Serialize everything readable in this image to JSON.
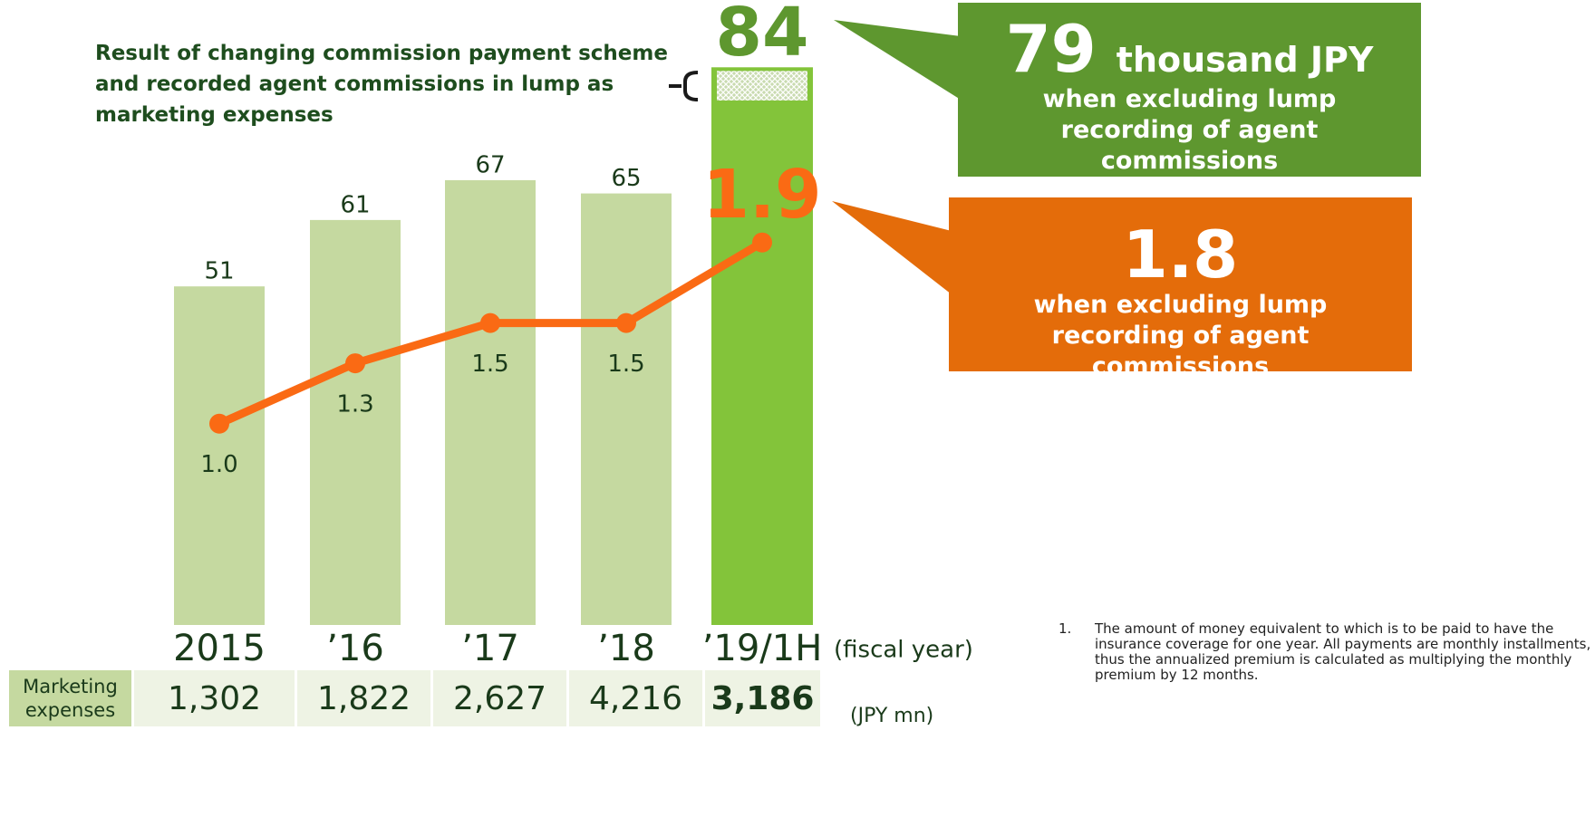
{
  "chart_data": {
    "type": "combo",
    "annotation": "Result of changing commission payment scheme and recorded agent commissions in lump as marketing expenses",
    "categories": [
      "2015",
      "’16",
      "’17",
      "’18",
      "’19/1H"
    ],
    "x_label": "(fiscal year)",
    "ylim": [
      0,
      94
    ],
    "y2lim": [
      0,
      3.1
    ],
    "series": [
      {
        "type": "bar",
        "color": "#c5d9a0",
        "highlight_color": "#83c43a",
        "label_color": "#1a3a1a",
        "values": [
          51,
          61,
          67,
          65,
          84
        ]
      },
      {
        "type": "line",
        "color": "#fa6a14",
        "axis": "y2",
        "values": [
          1.0,
          1.3,
          1.5,
          1.5,
          1.9
        ],
        "value_labels": [
          "1.0",
          "1.3",
          "1.5",
          "1.5",
          "1.9"
        ]
      }
    ],
    "callouts": [
      {
        "value": 79,
        "unit": "thousand JPY",
        "text": "when excluding lump recording of agent commissions",
        "color": "#5e972f"
      },
      {
        "value": 1.8,
        "text": "when excluding lump recording of agent commissions",
        "color": "#e46c0a"
      }
    ],
    "table": {
      "row_label": "Marketing expenses",
      "values": [
        "1,302",
        "1,822",
        "2,627",
        "4,216",
        "3,186"
      ],
      "unit": "(JPY mn)"
    },
    "footnote": {
      "number": "1.",
      "text": "The amount of money equivalent to which is to be paid to have the insurance coverage for one year. All payments are monthly installments, thus the annualized premium is calculated as multiplying the monthly premium by 12 months."
    }
  }
}
